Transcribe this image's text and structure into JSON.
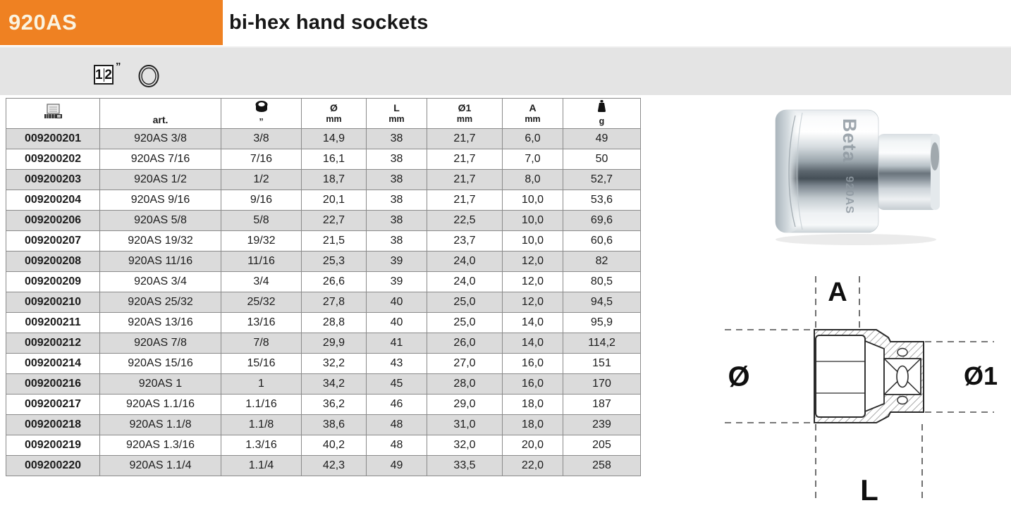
{
  "header": {
    "code": "920AS",
    "title": "bi-hex hand sockets"
  },
  "band": {
    "drive_icon": {
      "numerator": "1",
      "denominator": "2",
      "unit": "”"
    },
    "profile_icon": "bi-hex-ring-icon"
  },
  "table": {
    "columns": [
      {
        "id": "code",
        "icon": "barcode-icon"
      },
      {
        "id": "art",
        "label": "art."
      },
      {
        "id": "drive",
        "icon": "socket-drive-icon",
        "unit": "”"
      },
      {
        "id": "diameter",
        "label": "Ø",
        "unit": "mm"
      },
      {
        "id": "length",
        "label": "L",
        "unit": "mm"
      },
      {
        "id": "diameter1",
        "label": "Ø1",
        "unit": "mm"
      },
      {
        "id": "a",
        "label": "A",
        "unit": "mm"
      },
      {
        "id": "weight",
        "icon": "weight-icon",
        "unit": "g"
      }
    ],
    "rows": [
      [
        "009200201",
        "920AS 3/8",
        "3/8",
        "14,9",
        "38",
        "21,7",
        "6,0",
        "49"
      ],
      [
        "009200202",
        "920AS 7/16",
        "7/16",
        "16,1",
        "38",
        "21,7",
        "7,0",
        "50"
      ],
      [
        "009200203",
        "920AS 1/2",
        "1/2",
        "18,7",
        "38",
        "21,7",
        "8,0",
        "52,7"
      ],
      [
        "009200204",
        "920AS 9/16",
        "9/16",
        "20,1",
        "38",
        "21,7",
        "10,0",
        "53,6"
      ],
      [
        "009200206",
        "920AS 5/8",
        "5/8",
        "22,7",
        "38",
        "22,5",
        "10,0",
        "69,6"
      ],
      [
        "009200207",
        "920AS 19/32",
        "19/32",
        "21,5",
        "38",
        "23,7",
        "10,0",
        "60,6"
      ],
      [
        "009200208",
        "920AS 11/16",
        "11/16",
        "25,3",
        "39",
        "24,0",
        "12,0",
        "82"
      ],
      [
        "009200209",
        "920AS 3/4",
        "3/4",
        "26,6",
        "39",
        "24,0",
        "12,0",
        "80,5"
      ],
      [
        "009200210",
        "920AS 25/32",
        "25/32",
        "27,8",
        "40",
        "25,0",
        "12,0",
        "94,5"
      ],
      [
        "009200211",
        "920AS 13/16",
        "13/16",
        "28,8",
        "40",
        "25,0",
        "14,0",
        "95,9"
      ],
      [
        "009200212",
        "920AS 7/8",
        "7/8",
        "29,9",
        "41",
        "26,0",
        "14,0",
        "114,2"
      ],
      [
        "009200214",
        "920AS 15/16",
        "15/16",
        "32,2",
        "43",
        "27,0",
        "16,0",
        "151"
      ],
      [
        "009200216",
        "920AS 1",
        "1",
        "34,2",
        "45",
        "28,0",
        "16,0",
        "170"
      ],
      [
        "009200217",
        "920AS 1.1/16",
        "1.1/16",
        "36,2",
        "46",
        "29,0",
        "18,0",
        "187"
      ],
      [
        "009200218",
        "920AS 1.1/8",
        "1.1/8",
        "38,6",
        "48",
        "31,0",
        "18,0",
        "239"
      ],
      [
        "009200219",
        "920AS 1.3/16",
        "1.3/16",
        "40,2",
        "48",
        "32,0",
        "20,0",
        "205"
      ],
      [
        "009200220",
        "920AS 1.1/4",
        "1.1/4",
        "42,3",
        "49",
        "33,5",
        "22,0",
        "258"
      ]
    ]
  },
  "product": {
    "marking_brand": "Beta",
    "marking_model": "920AS"
  },
  "diagram": {
    "label_a": "A",
    "label_d": "Ø",
    "label_d1": "Ø1",
    "label_l": "L"
  },
  "colors": {
    "accent_orange": "#EF8122",
    "band_gray": "#E4E4E4",
    "row_shade_gray": "#DBDBDB",
    "table_border": "#8A8A8A"
  }
}
